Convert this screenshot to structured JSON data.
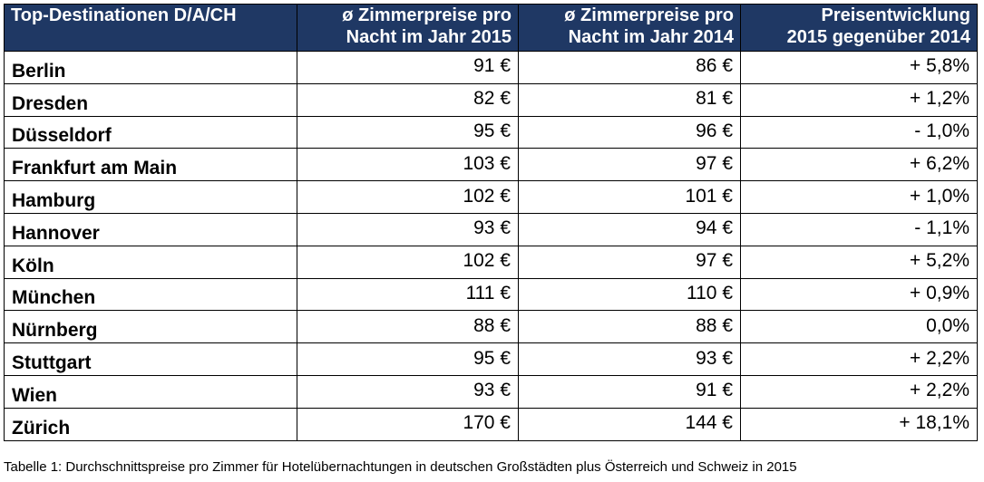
{
  "table": {
    "headers": [
      {
        "line1": "Top-Destinationen D/A/CH",
        "line2": ""
      },
      {
        "line1": "ø Zimmerpreise pro",
        "line2": "Nacht im Jahr 2015"
      },
      {
        "line1": "ø Zimmerpreise pro",
        "line2": "Nacht im Jahr 2014"
      },
      {
        "line1": "Preisentwicklung",
        "line2": "2015 gegenüber 2014"
      }
    ],
    "rows": [
      {
        "city": "Berlin",
        "price_2015": "91 €",
        "price_2014": "86 €",
        "change": "+ 5,8%"
      },
      {
        "city": "Dresden",
        "price_2015": "82 €",
        "price_2014": "81 €",
        "change": "+ 1,2%"
      },
      {
        "city": "Düsseldorf",
        "price_2015": "95 €",
        "price_2014": "96 €",
        "change": "- 1,0%"
      },
      {
        "city": "Frankfurt am Main",
        "price_2015": "103 €",
        "price_2014": "97 €",
        "change": "+ 6,2%"
      },
      {
        "city": "Hamburg",
        "price_2015": "102 €",
        "price_2014": "101 €",
        "change": "+ 1,0%"
      },
      {
        "city": "Hannover",
        "price_2015": "93 €",
        "price_2014": "94 €",
        "change": "- 1,1%"
      },
      {
        "city": "Köln",
        "price_2015": "102 €",
        "price_2014": "97 €",
        "change": "+ 5,2%"
      },
      {
        "city": "München",
        "price_2015": "111 €",
        "price_2014": "110 €",
        "change": "+ 0,9%"
      },
      {
        "city": "Nürnberg",
        "price_2015": "88 €",
        "price_2014": "88 €",
        "change": "0,0%"
      },
      {
        "city": "Stuttgart",
        "price_2015": "95 €",
        "price_2014": "93 €",
        "change": "+ 2,2%"
      },
      {
        "city": "Wien",
        "price_2015": "93 €",
        "price_2014": "91 €",
        "change": "+ 2,2%"
      },
      {
        "city": "Zürich",
        "price_2015": "170 €",
        "price_2014": "144 €",
        "change": "+ 18,1%"
      }
    ]
  },
  "caption": "Tabelle 1: Durchschnittspreise pro Zimmer für Hotelübernachtungen in deutschen Großstädten plus Österreich und Schweiz in 2015",
  "colors": {
    "header_background": "#1f3864",
    "header_text": "#ffffff",
    "border": "#000000"
  }
}
